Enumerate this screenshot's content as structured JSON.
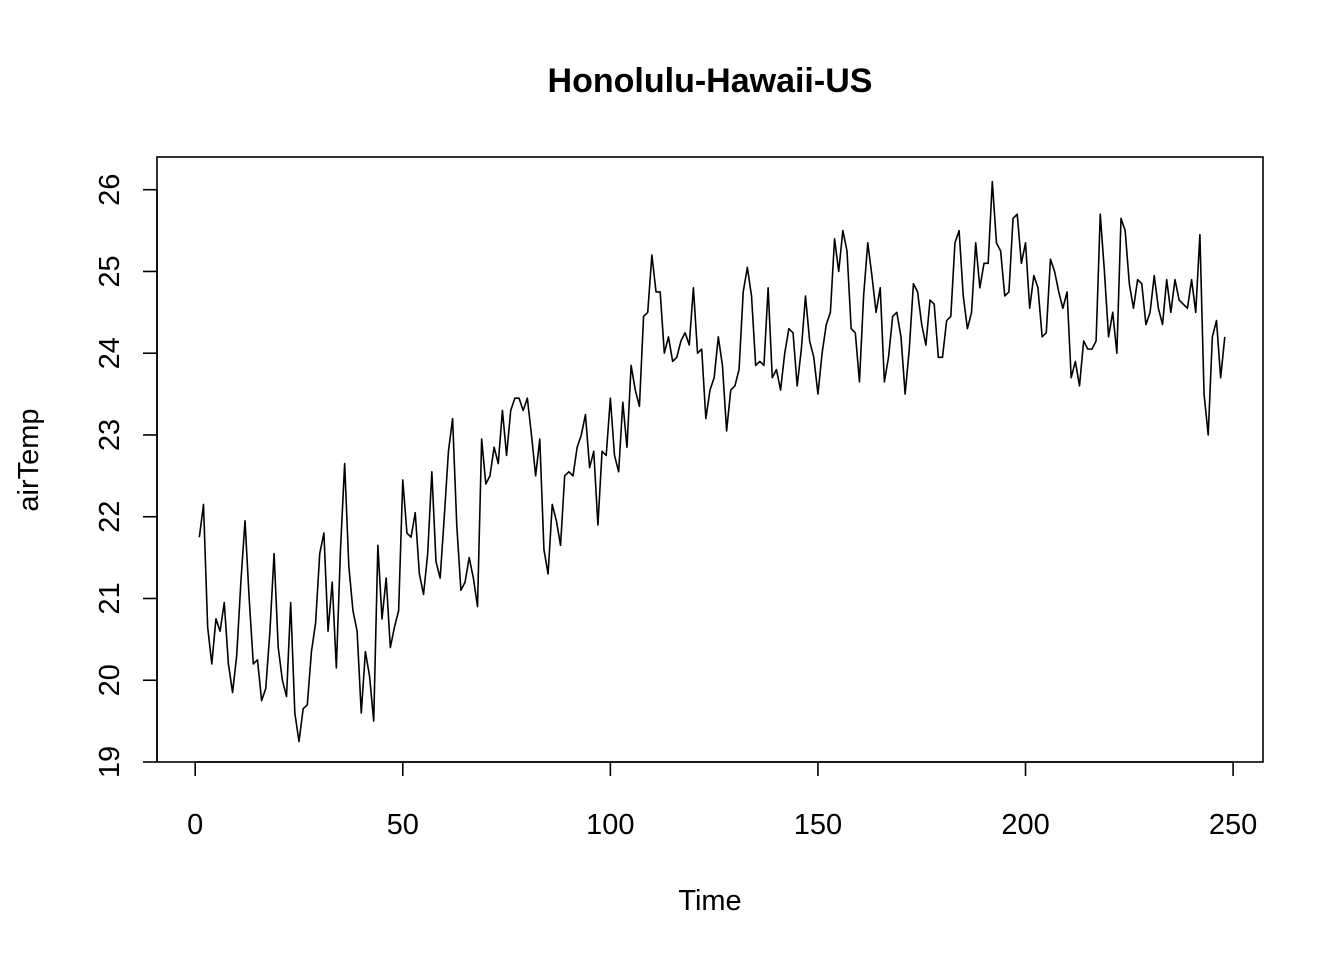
{
  "chart_data": {
    "type": "line",
    "title": "Honolulu-Hawaii-US",
    "xlabel": "Time",
    "ylabel": "airTemp",
    "xlim": [
      -9.2,
      257.2
    ],
    "ylim": [
      19.0,
      26.4
    ],
    "xticks": [
      0,
      50,
      100,
      150,
      200,
      250
    ],
    "yticks": [
      19,
      20,
      21,
      22,
      23,
      24,
      25,
      26
    ],
    "xtick_labels": [
      "0",
      "50",
      "100",
      "150",
      "200",
      "250"
    ],
    "ytick_labels": [
      "19",
      "20",
      "21",
      "22",
      "23",
      "24",
      "25",
      "26"
    ],
    "grid": false,
    "legend": "none",
    "line_color": "#000000",
    "series": [
      {
        "x_start": 1,
        "values": [
          21.75,
          22.15,
          20.65,
          20.2,
          20.75,
          20.6,
          20.95,
          20.2,
          19.85,
          20.3,
          21.2,
          21.95,
          21.0,
          20.2,
          20.25,
          19.75,
          19.9,
          20.6,
          21.55,
          20.4,
          20.0,
          19.8,
          20.95,
          19.6,
          19.25,
          19.65,
          19.7,
          20.35,
          20.7,
          21.55,
          21.8,
          20.6,
          21.2,
          20.15,
          21.6,
          22.65,
          21.4,
          20.85,
          20.6,
          19.6,
          20.35,
          20.05,
          19.5,
          21.65,
          20.75,
          21.25,
          20.4,
          20.65,
          20.85,
          22.45,
          21.8,
          21.75,
          22.05,
          21.3,
          21.05,
          21.55,
          22.55,
          21.45,
          21.25,
          22.0,
          22.8,
          23.2,
          21.9,
          21.1,
          21.2,
          21.5,
          21.25,
          20.9,
          22.95,
          22.4,
          22.5,
          22.85,
          22.65,
          23.3,
          22.75,
          23.3,
          23.45,
          23.45,
          23.3,
          23.45,
          23.0,
          22.5,
          22.95,
          21.6,
          21.3,
          22.15,
          21.95,
          21.65,
          22.5,
          22.55,
          22.5,
          22.85,
          23.0,
          23.25,
          22.6,
          22.8,
          21.9,
          22.8,
          22.75,
          23.45,
          22.75,
          22.55,
          23.4,
          22.85,
          23.85,
          23.55,
          23.35,
          24.45,
          24.5,
          25.2,
          24.75,
          24.75,
          24.0,
          24.2,
          23.9,
          23.95,
          24.15,
          24.25,
          24.1,
          24.8,
          24.0,
          24.05,
          23.2,
          23.55,
          23.7,
          24.2,
          23.85,
          23.05,
          23.55,
          23.6,
          23.8,
          24.75,
          25.05,
          24.7,
          23.85,
          23.9,
          23.85,
          24.8,
          23.7,
          23.8,
          23.55,
          24.0,
          24.3,
          24.25,
          23.6,
          24.05,
          24.7,
          24.15,
          23.95,
          23.5,
          24.0,
          24.35,
          24.5,
          25.4,
          25.0,
          25.5,
          25.25,
          24.3,
          24.25,
          23.65,
          24.7,
          25.35,
          24.95,
          24.5,
          24.8,
          23.65,
          23.95,
          24.45,
          24.5,
          24.2,
          23.5,
          24.05,
          24.85,
          24.75,
          24.35,
          24.1,
          24.65,
          24.6,
          23.95,
          23.95,
          24.4,
          24.45,
          25.35,
          25.5,
          24.7,
          24.3,
          24.5,
          25.35,
          24.8,
          25.1,
          25.1,
          26.1,
          25.35,
          25.25,
          24.7,
          24.75,
          25.65,
          25.7,
          25.1,
          25.35,
          24.55,
          24.95,
          24.8,
          24.2,
          24.25,
          25.15,
          25.0,
          24.75,
          24.55,
          24.75,
          23.7,
          23.9,
          23.6,
          24.15,
          24.05,
          24.05,
          24.15,
          25.7,
          25.0,
          24.2,
          24.5,
          24.0,
          25.65,
          25.5,
          24.85,
          24.55,
          24.9,
          24.85,
          24.35,
          24.5,
          24.95,
          24.55,
          24.35,
          24.9,
          24.5,
          24.9,
          24.65,
          24.6,
          24.55,
          24.9,
          24.5,
          25.45,
          23.5,
          23.0,
          24.2,
          24.4,
          23.7,
          24.2
        ]
      }
    ]
  }
}
